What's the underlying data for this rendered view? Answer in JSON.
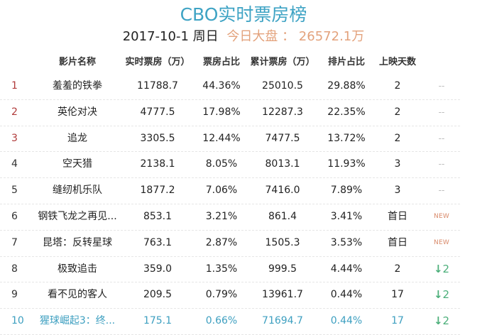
{
  "header": {
    "title": "CBO实时票房榜",
    "date": "2017-10-1 周日",
    "total_label": "今日大盘 ： 26572.1万"
  },
  "colors": {
    "title": "#3ea3c4",
    "total": "#e3a27c",
    "top_rank": "#b03a3a",
    "highlight_row": "#3d9fc0",
    "trend_down": "#4caf7a",
    "new_badge": "#d98a6a"
  },
  "table": {
    "columns": [
      "影片名称",
      "实时票房（万）",
      "票房占比",
      "累计票房（万）",
      "排片占比",
      "上映天数"
    ],
    "rows": [
      {
        "rank": "1",
        "name": "羞羞的铁拳",
        "realtime": "11788.7",
        "share": "44.36%",
        "cumulative": "25010.5",
        "screen_share": "29.88%",
        "days": "2",
        "trend": "--",
        "trend_type": "none"
      },
      {
        "rank": "2",
        "name": "英伦对决",
        "realtime": "4777.5",
        "share": "17.98%",
        "cumulative": "12287.3",
        "screen_share": "22.35%",
        "days": "2",
        "trend": "--",
        "trend_type": "none"
      },
      {
        "rank": "3",
        "name": "追龙",
        "realtime": "3305.5",
        "share": "12.44%",
        "cumulative": "7477.5",
        "screen_share": "13.72%",
        "days": "2",
        "trend": "--",
        "trend_type": "none"
      },
      {
        "rank": "4",
        "name": "空天猎",
        "realtime": "2138.1",
        "share": "8.05%",
        "cumulative": "8013.1",
        "screen_share": "11.93%",
        "days": "3",
        "trend": "--",
        "trend_type": "none"
      },
      {
        "rank": "5",
        "name": "缝纫机乐队",
        "realtime": "1877.2",
        "share": "7.06%",
        "cumulative": "7416.0",
        "screen_share": "7.89%",
        "days": "3",
        "trend": "--",
        "trend_type": "none"
      },
      {
        "rank": "6",
        "name": "钢铁飞龙之再见...",
        "realtime": "853.1",
        "share": "3.21%",
        "cumulative": "861.4",
        "screen_share": "3.41%",
        "days": "首日",
        "trend": "NEW",
        "trend_type": "new"
      },
      {
        "rank": "7",
        "name": "昆塔：反转星球",
        "realtime": "763.1",
        "share": "2.87%",
        "cumulative": "1505.3",
        "screen_share": "3.53%",
        "days": "首日",
        "trend": "NEW",
        "trend_type": "new"
      },
      {
        "rank": "8",
        "name": "极致追击",
        "realtime": "359.0",
        "share": "1.35%",
        "cumulative": "999.5",
        "screen_share": "4.44%",
        "days": "2",
        "trend": "2",
        "trend_type": "down"
      },
      {
        "rank": "9",
        "name": "看不见的客人",
        "realtime": "209.5",
        "share": "0.79%",
        "cumulative": "13961.7",
        "screen_share": "0.44%",
        "days": "17",
        "trend": "2",
        "trend_type": "down"
      },
      {
        "rank": "10",
        "name": "猩球崛起3：终...",
        "realtime": "175.1",
        "share": "0.66%",
        "cumulative": "71694.7",
        "screen_share": "0.44%",
        "days": "17",
        "trend": "2",
        "trend_type": "down"
      }
    ]
  }
}
